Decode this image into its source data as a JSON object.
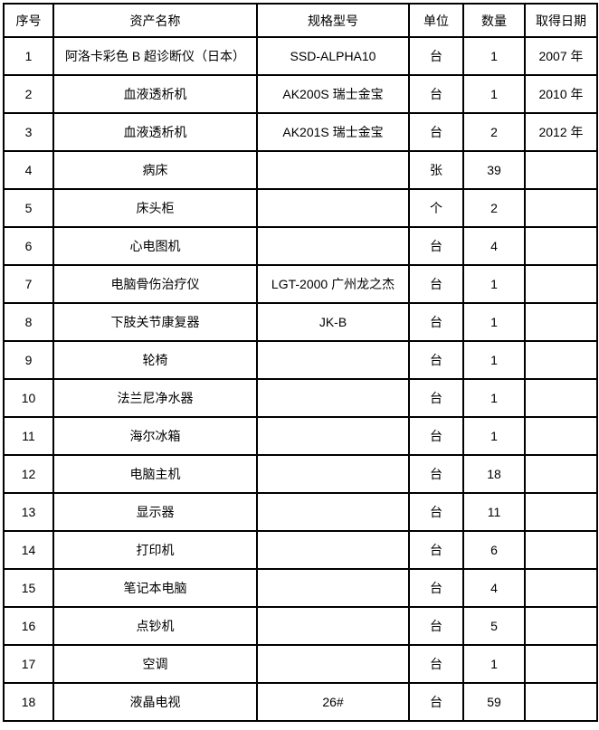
{
  "table": {
    "columns": [
      {
        "key": "index",
        "label": "序号"
      },
      {
        "key": "name",
        "label": "资产名称"
      },
      {
        "key": "spec",
        "label": "规格型号"
      },
      {
        "key": "unit",
        "label": "单位"
      },
      {
        "key": "qty",
        "label": "数量"
      },
      {
        "key": "date",
        "label": "取得日期"
      }
    ],
    "rows": [
      [
        "1",
        "阿洛卡彩色 B 超诊断仪（日本）",
        "SSD-ALPHA10",
        "台",
        "1",
        "2007 年"
      ],
      [
        "2",
        "血液透析机",
        "AK200S 瑞士金宝",
        "台",
        "1",
        "2010 年"
      ],
      [
        "3",
        "血液透析机",
        "AK201S 瑞士金宝",
        "台",
        "2",
        "2012 年"
      ],
      [
        "4",
        "病床",
        "",
        "张",
        "39",
        ""
      ],
      [
        "5",
        "床头柜",
        "",
        "个",
        "2",
        ""
      ],
      [
        "6",
        "心电图机",
        "",
        "台",
        "4",
        ""
      ],
      [
        "7",
        "电脑骨伤治疗仪",
        "LGT-2000 广州龙之杰",
        "台",
        "1",
        ""
      ],
      [
        "8",
        "下肢关节康复器",
        "JK-B",
        "台",
        "1",
        ""
      ],
      [
        "9",
        "轮椅",
        "",
        "台",
        "1",
        ""
      ],
      [
        "10",
        "法兰尼净水器",
        "",
        "台",
        "1",
        ""
      ],
      [
        "11",
        "海尔冰箱",
        "",
        "台",
        "1",
        ""
      ],
      [
        "12",
        "电脑主机",
        "",
        "台",
        "18",
        ""
      ],
      [
        "13",
        "显示器",
        "",
        "台",
        "11",
        ""
      ],
      [
        "14",
        "打印机",
        "",
        "台",
        "6",
        ""
      ],
      [
        "15",
        "笔记本电脑",
        "",
        "台",
        "4",
        ""
      ],
      [
        "16",
        "点钞机",
        "",
        "台",
        "5",
        ""
      ],
      [
        "17",
        "空调",
        "",
        "台",
        "1",
        ""
      ],
      [
        "18",
        "液晶电视",
        "26#",
        "台",
        "59",
        ""
      ]
    ],
    "colors": {
      "border": "#000000",
      "text": "#000000",
      "background": "#ffffff"
    }
  }
}
